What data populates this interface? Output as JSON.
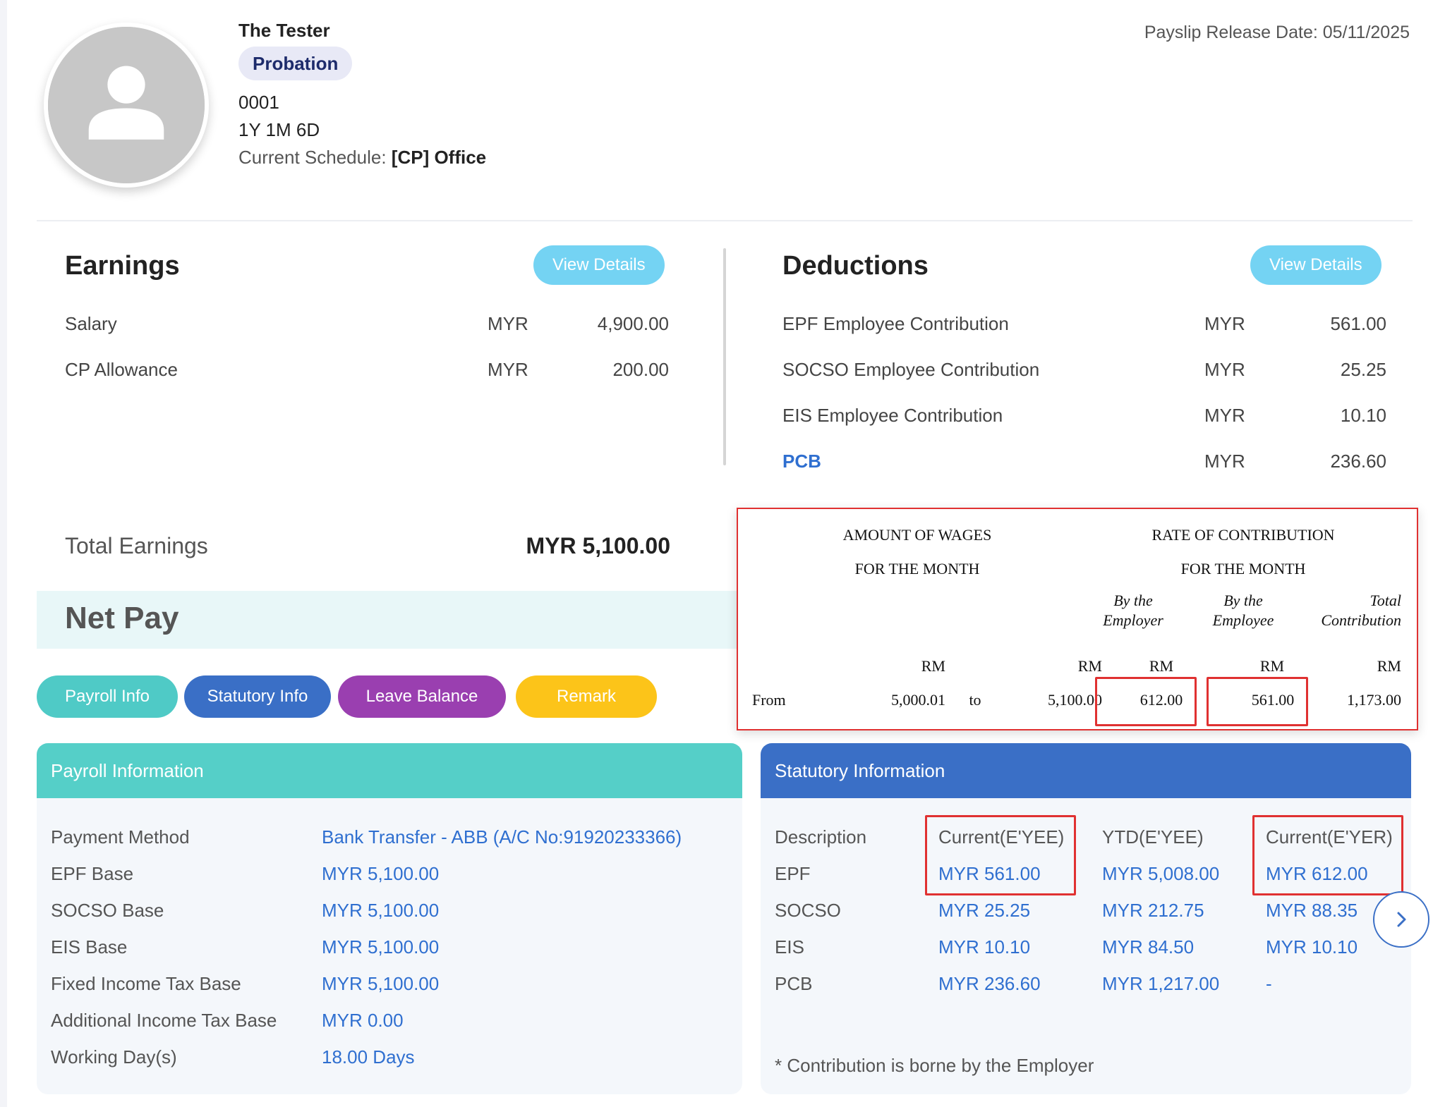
{
  "employee": {
    "name": "The Tester",
    "status": "Probation",
    "id": "0001",
    "tenure": "1Y 1M 6D",
    "schedule_label": "Current Schedule:",
    "schedule_value": "[CP] Office"
  },
  "release_date": "Payslip Release Date: 05/11/2025",
  "earnings": {
    "title": "Earnings",
    "view_details": "View Details",
    "rows": [
      {
        "label": "Salary",
        "currency": "MYR",
        "amount": "4,900.00"
      },
      {
        "label": "CP Allowance",
        "currency": "MYR",
        "amount": "200.00"
      }
    ],
    "total_label": "Total Earnings",
    "total_value": "MYR 5,100.00"
  },
  "deductions": {
    "title": "Deductions",
    "view_details": "View Details",
    "rows": [
      {
        "label": "EPF Employee Contribution",
        "currency": "MYR",
        "amount": "561.00"
      },
      {
        "label": "SOCSO Employee Contribution",
        "currency": "MYR",
        "amount": "25.25"
      },
      {
        "label": "EIS Employee Contribution",
        "currency": "MYR",
        "amount": "10.10"
      },
      {
        "label": "PCB",
        "currency": "MYR",
        "amount": "236.60"
      }
    ]
  },
  "net_pay": {
    "title": "Net Pay"
  },
  "tabs": [
    {
      "label": "Payroll Info",
      "color": "#4fcac6"
    },
    {
      "label": "Statutory Info",
      "color": "#3a6fc6"
    },
    {
      "label": "Leave Balance",
      "color": "#9a3fb0"
    },
    {
      "label": "Remark",
      "color": "#fcc419"
    }
  ],
  "payroll_info": {
    "title": "Payroll Information",
    "header_color": "#55cfc8",
    "rows": [
      {
        "label": "Payment Method",
        "value": "Bank Transfer - ABB (A/C No:91920233366)"
      },
      {
        "label": "EPF Base",
        "value": "MYR 5,100.00"
      },
      {
        "label": "SOCSO Base",
        "value": "MYR 5,100.00"
      },
      {
        "label": "EIS Base",
        "value": "MYR 5,100.00"
      },
      {
        "label": "Fixed Income Tax Base",
        "value": "MYR 5,100.00"
      },
      {
        "label": "Additional Income Tax Base",
        "value": "MYR 0.00"
      },
      {
        "label": "Working Day(s)",
        "value": "18.00 Days"
      }
    ]
  },
  "statutory_info": {
    "title": "Statutory Information",
    "header_color": "#3a6fc6",
    "headers": [
      "Description",
      "Current(E'YEE)",
      "YTD(E'YEE)",
      "Current(E'YER)"
    ],
    "rows": [
      {
        "desc": "EPF",
        "current_eyee": "MYR 561.00",
        "ytd_eyee": "MYR 5,008.00",
        "current_eyer": "MYR 612.00"
      },
      {
        "desc": "SOCSO",
        "current_eyee": "MYR 25.25",
        "ytd_eyee": "MYR 212.75",
        "current_eyer": "MYR 88.35"
      },
      {
        "desc": "EIS",
        "current_eyee": "MYR 10.10",
        "ytd_eyee": "MYR 84.50",
        "current_eyer": "MYR 10.10"
      },
      {
        "desc": "PCB",
        "current_eyee": "MYR 236.60",
        "ytd_eyee": "MYR 1,217.00",
        "current_eyer": "-"
      }
    ],
    "footnote": "* Contribution is borne by the Employer"
  },
  "contribution_table": {
    "col1_line1": "AMOUNT OF WAGES",
    "col1_line2": "FOR THE MONTH",
    "col2_line1": "RATE OF CONTRIBUTION",
    "col2_line2": "FOR THE MONTH",
    "by_employer": "By the\nEmployer",
    "by_employee": "By the\nEmployee",
    "total_contribution": "Total\nContribution",
    "unit": "RM",
    "from_label": "From",
    "to_label": "to",
    "wage_from": "5,000.01",
    "wage_to": "5,100.00",
    "employer_amount": "612.00",
    "employee_amount": "561.00",
    "total_amount": "1,173.00"
  },
  "icons": {
    "avatar": "person-placeholder-icon",
    "next": "chevron-right-icon"
  }
}
